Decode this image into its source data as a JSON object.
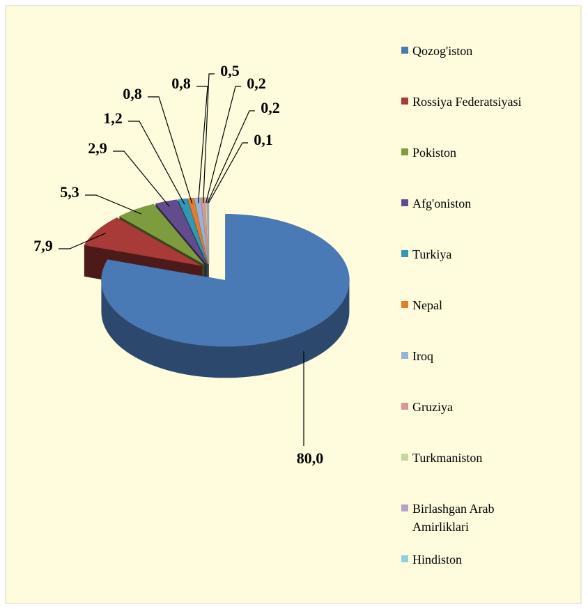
{
  "chart_data": {
    "type": "pie",
    "categories": [
      "Qozog'iston",
      "Rossiya Federatsiyasi",
      "Pokiston",
      "Afg'oniston",
      "Turkiya",
      "Nepal",
      "Iroq",
      "Gruziya",
      "Turkmaniston",
      "Birlashgan Arab Amirliklari",
      "Hindiston"
    ],
    "values": [
      80.0,
      7.9,
      5.3,
      2.9,
      1.2,
      0.8,
      0.8,
      0.5,
      0.2,
      0.2,
      0.1
    ],
    "value_labels": [
      "80,0",
      "7,9",
      "5,3",
      "2,9",
      "1,2",
      "0,8",
      "0,8",
      "0,5",
      "0,2",
      "0,2",
      "0,1"
    ],
    "colors": [
      "#4a7ab5",
      "#a83a38",
      "#7c9c3e",
      "#624c8e",
      "#3398b3",
      "#e27d2d",
      "#97b4d8",
      "#d99694",
      "#c4d79c",
      "#b4a3c8",
      "#93cedd"
    ],
    "legend": "right"
  }
}
